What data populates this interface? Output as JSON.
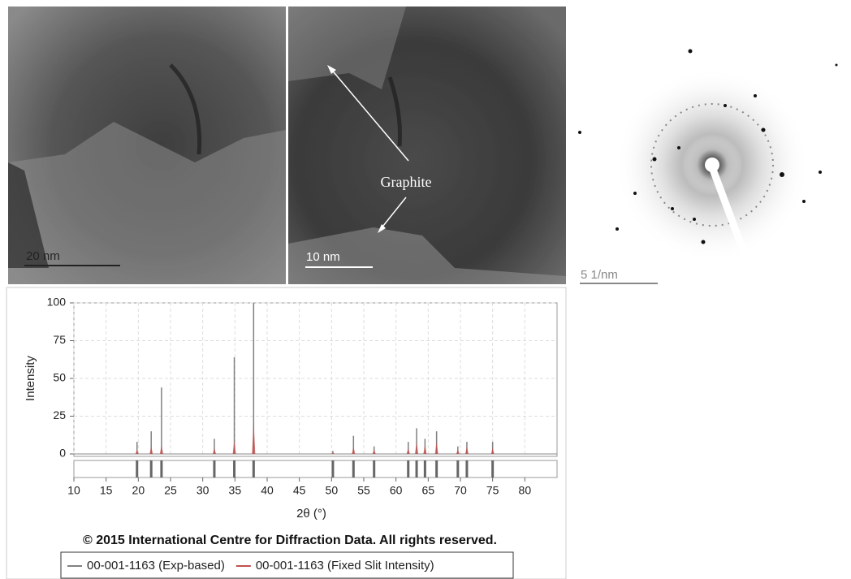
{
  "images": [
    {
      "scale_label": "20 nm"
    },
    {
      "scale_label": "10 nm",
      "annotation": "Graphite"
    },
    {
      "scale_label": "5 1/nm"
    }
  ],
  "chart_data": {
    "type": "stick",
    "x": [
      19.8,
      22.0,
      23.6,
      31.8,
      34.9,
      37.9,
      50.2,
      53.4,
      56.6,
      61.9,
      63.2,
      64.5,
      66.3,
      69.6,
      71.0,
      75.0
    ],
    "series": [
      {
        "name": "00-001-1163 (Exp-based)",
        "color": "#808080",
        "values": [
          8,
          15,
          44,
          10,
          64,
          100,
          2,
          12,
          5,
          8,
          17,
          10,
          15,
          5,
          8,
          8
        ]
      },
      {
        "name": "00-001-1163 (Fixed Slit Intensity)",
        "color": "#c0504d",
        "values": [
          3,
          5,
          6,
          4,
          9,
          22,
          1,
          5,
          3,
          4,
          8,
          6,
          8,
          3,
          5,
          4
        ]
      }
    ],
    "xlim": [
      10,
      85
    ],
    "xticks": [
      10,
      15,
      20,
      25,
      30,
      35,
      40,
      45,
      50,
      55,
      60,
      65,
      70,
      75,
      80
    ],
    "ylim": [
      0,
      100
    ],
    "yticks": [
      0,
      25,
      50,
      75,
      100
    ],
    "xlabel": "2θ (°)",
    "ylabel": "Intensity",
    "note": "© 2015 International Centre for Diffraction Data. All rights reserved.",
    "grid": true
  }
}
